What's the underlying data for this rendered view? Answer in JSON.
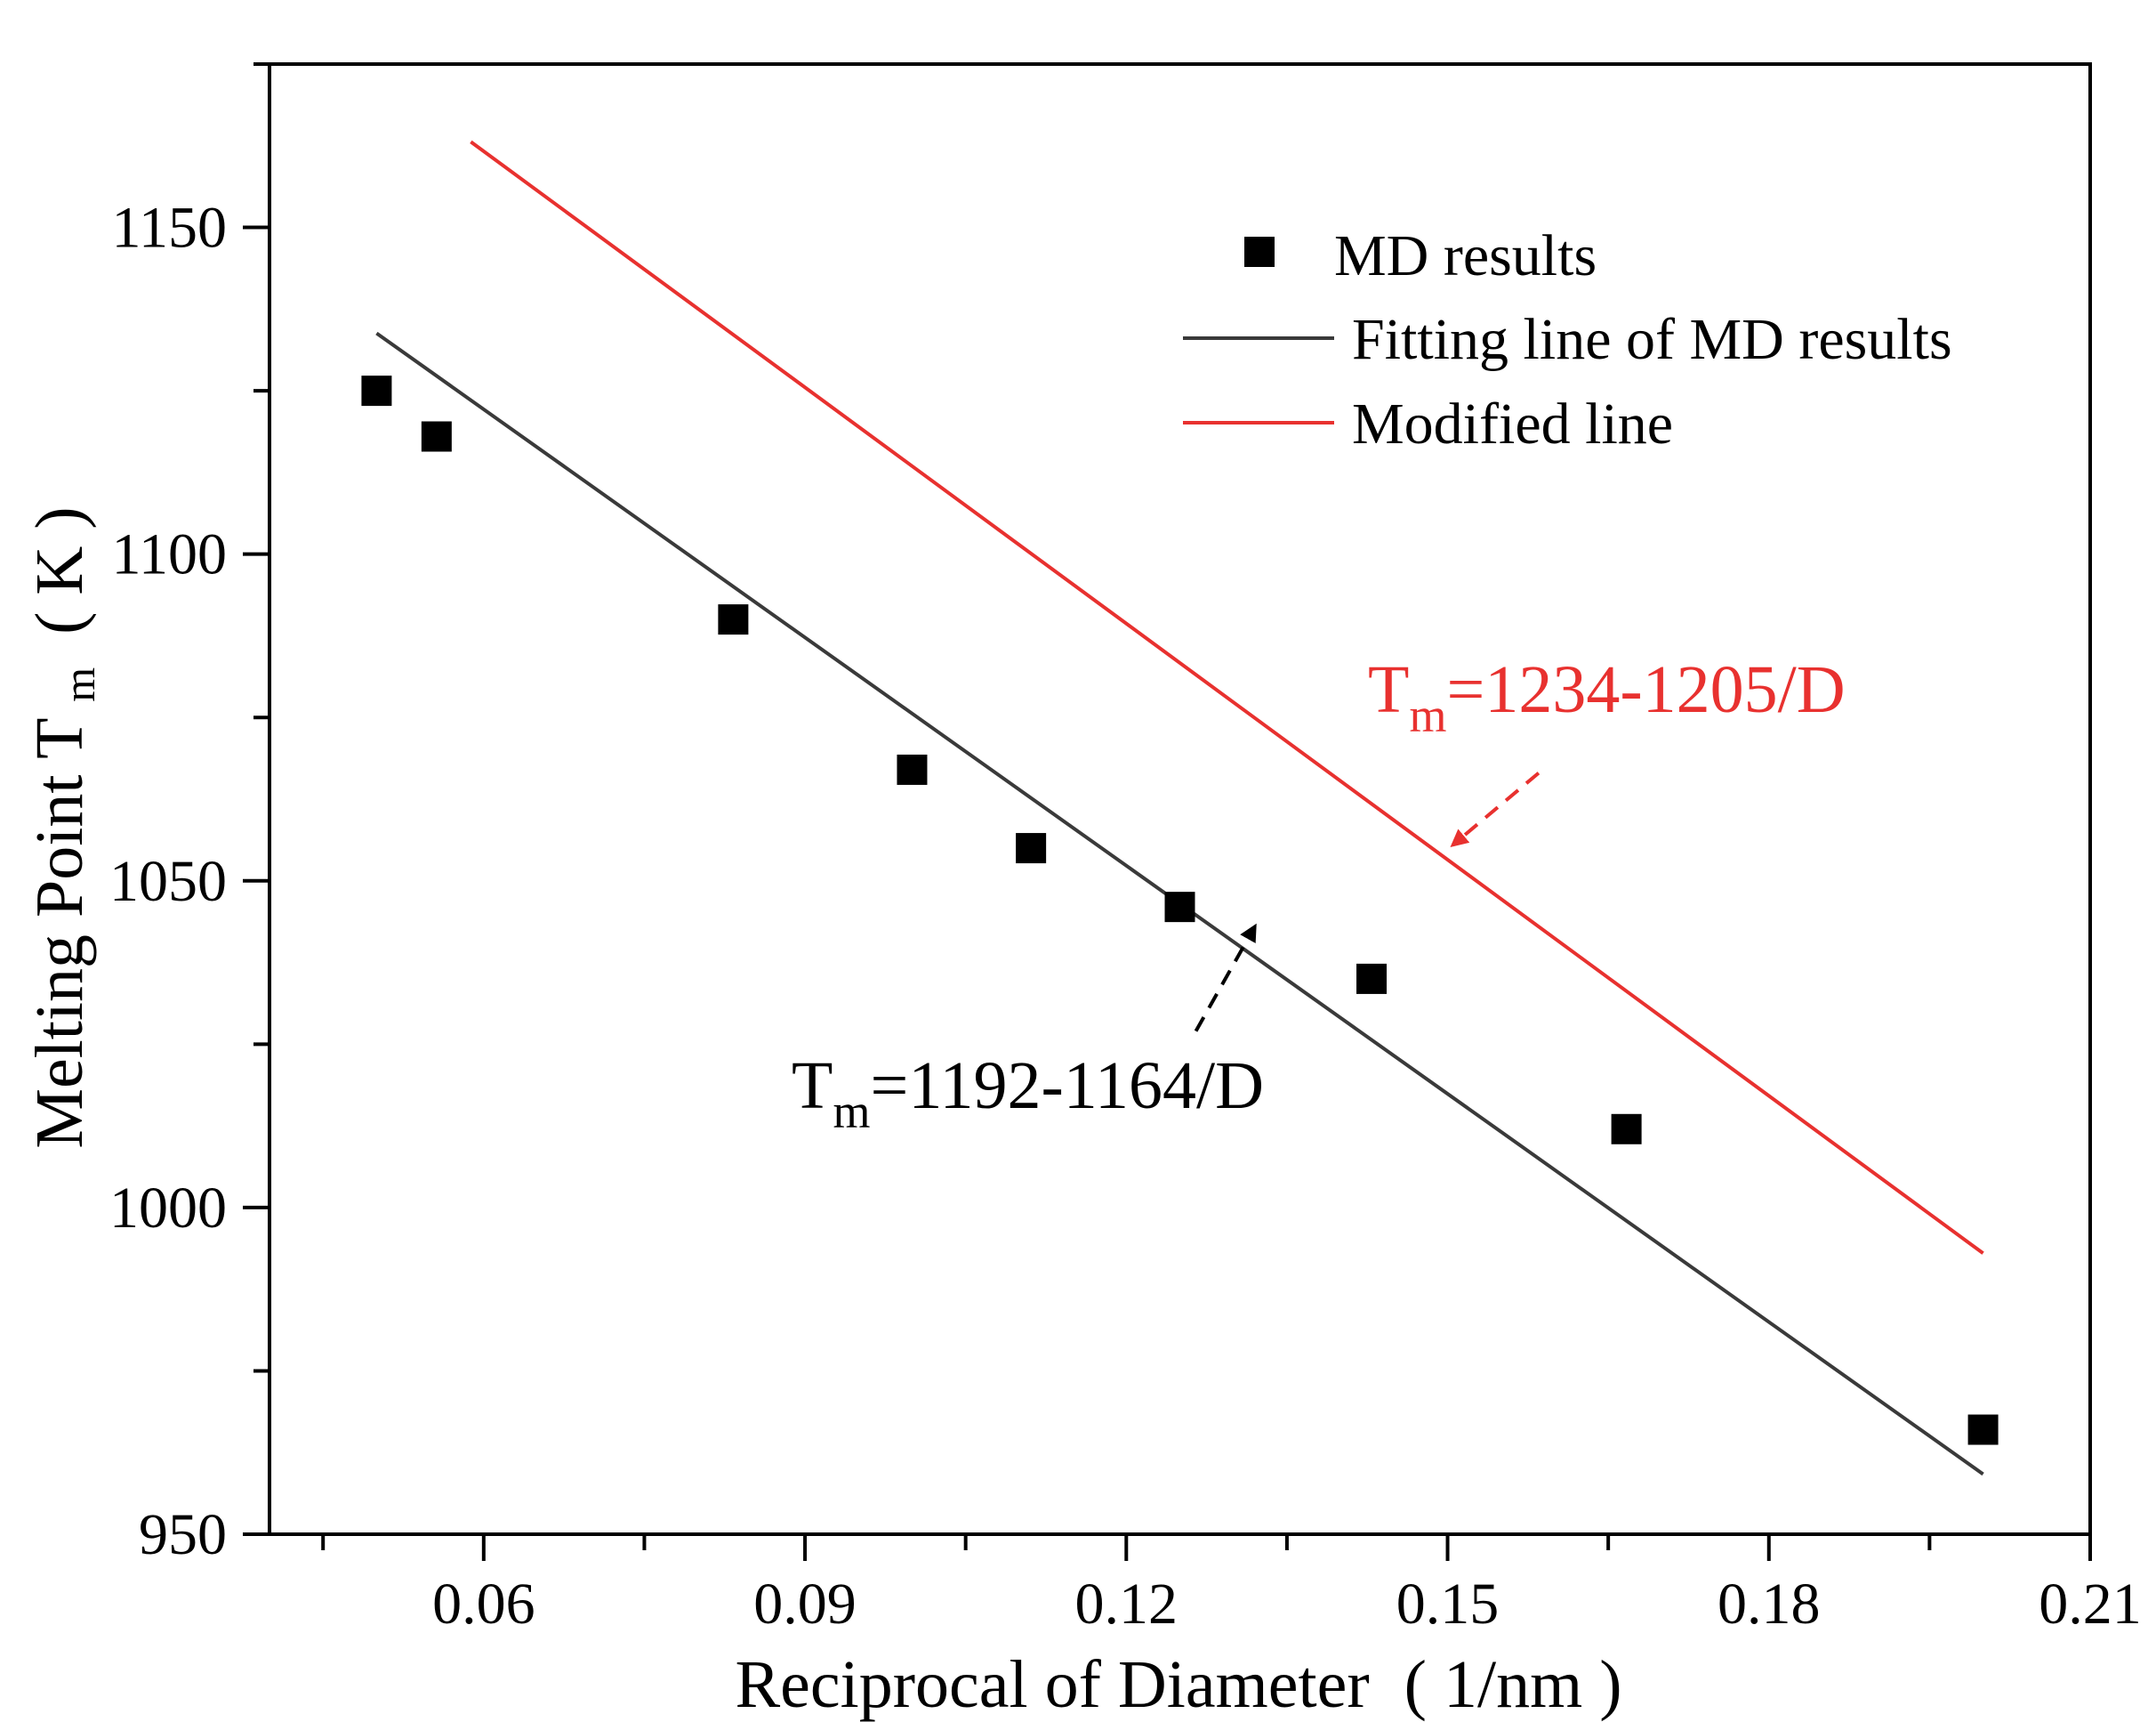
{
  "chart_data": {
    "type": "scatter",
    "xlabel_main": "Reciprocal of Diameter",
    "xlabel_unit": "( 1/nm )",
    "ylabel_main": "Melting Point T",
    "ylabel_sub": "m",
    "ylabel_unit": "( K )",
    "xlim": [
      0.04,
      0.21
    ],
    "ylim": [
      950,
      1175
    ],
    "x_ticks": [
      0.06,
      0.09,
      0.12,
      0.15,
      0.18,
      0.21
    ],
    "x_tick_labels": [
      "0.06",
      "0.09",
      "0.12",
      "0.15",
      "0.18",
      "0.21"
    ],
    "y_ticks": [
      950,
      1000,
      1050,
      1100,
      1150
    ],
    "y_tick_labels": [
      "950",
      "1000",
      "1050",
      "1100",
      "1150"
    ],
    "grid": false,
    "legend_position": "top-right",
    "series": [
      {
        "name": "MD results",
        "kind": "scatter",
        "marker": "square",
        "color": "#000000",
        "x": [
          0.05,
          0.0556,
          0.0833,
          0.1,
          0.1111,
          0.125,
          0.1429,
          0.1667,
          0.2
        ],
        "y": [
          1125,
          1118,
          1090,
          1067,
          1055,
          1046,
          1035,
          1012,
          966
        ]
      },
      {
        "name": "Fitting line of MD results",
        "kind": "line",
        "color": "#3a3a3a",
        "x": [
          0.05,
          0.2
        ],
        "y": [
          1133.8,
          959.2
        ]
      },
      {
        "name": "Modified line",
        "kind": "line",
        "color": "#e8312f",
        "x": [
          0.0588,
          0.2
        ],
        "y": [
          1163.1,
          993.0
        ]
      }
    ],
    "annotations": [
      {
        "text_main": "T",
        "text_sub": "m",
        "text_rest": "=1192-1164/D",
        "color": "#000000",
        "arrow_from": [
          0.1265,
          1027.0
        ],
        "arrow_to": [
          0.132,
          1043.0
        ]
      },
      {
        "text_main": "T",
        "text_sub": "m",
        "text_rest": "=1234-1205/D",
        "color": "#e8312f",
        "arrow_from": [
          0.1585,
          1066.5
        ],
        "arrow_to": [
          0.1505,
          1055.5
        ]
      }
    ]
  }
}
